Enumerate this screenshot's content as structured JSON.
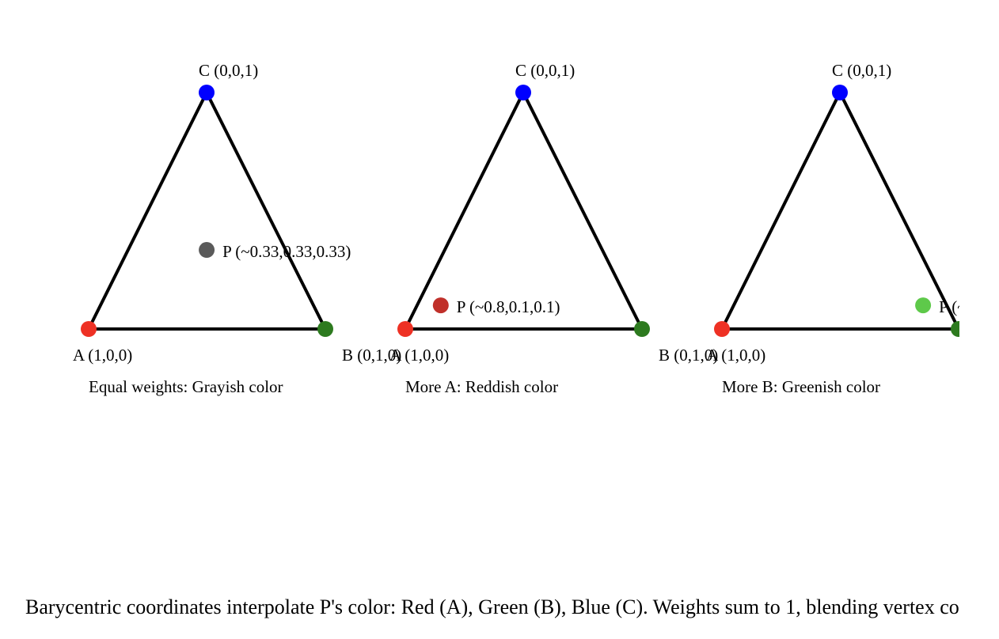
{
  "colors": {
    "vertex_a": "#ee3124",
    "vertex_b": "#2d7a1f",
    "vertex_c": "#0000ff",
    "edge": "#000000"
  },
  "panels": [
    {
      "a_label": "A (1,0,0)",
      "b_label": "B (0,1,0)",
      "c_label": "C (0,0,1)",
      "p_label": "P (~0.33,0.33,0.33)",
      "p_weights": [
        0.333,
        0.333,
        0.333
      ],
      "p_color": "#5a5a5a",
      "caption": "Equal weights: Grayish color"
    },
    {
      "a_label": "A (1,0,0)",
      "b_label": "B (0,1,0)",
      "c_label": "C (0,0,1)",
      "p_label": "P (~0.8,0.1,0.1)",
      "p_weights": [
        0.8,
        0.1,
        0.1
      ],
      "p_color": "#c0302a",
      "caption": "More A: Reddish color"
    },
    {
      "a_label": "A (1,0,0)",
      "b_label": "B (0,1,0)",
      "c_label": "C (0,0,1)",
      "p_label": "P (~0.1,0.8,0.1)",
      "p_weights": [
        0.1,
        0.8,
        0.1
      ],
      "p_color": "#5ec94a",
      "caption": "More B: Greenish color"
    }
  ],
  "footer": "Barycentric coordinates interpolate P's color: Red (A), Green (B), Blue (C). Weights sum to 1, blending vertex colors."
}
